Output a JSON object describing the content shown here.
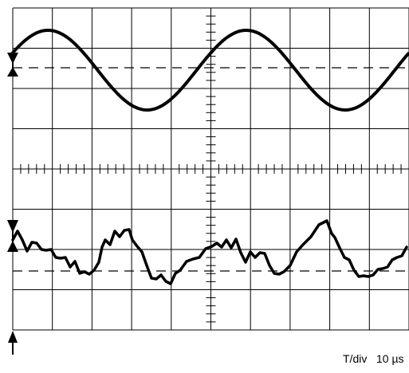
{
  "display": {
    "timebase": {
      "label": "T/div",
      "value": "10 µs"
    }
  },
  "traces": [
    {
      "kind": "sine",
      "periods_per_screen": 2.0
    },
    {
      "kind": "noisy"
    }
  ],
  "colors": {
    "grid": "#000000",
    "trace": "#000000",
    "background": "#ffffff"
  }
}
